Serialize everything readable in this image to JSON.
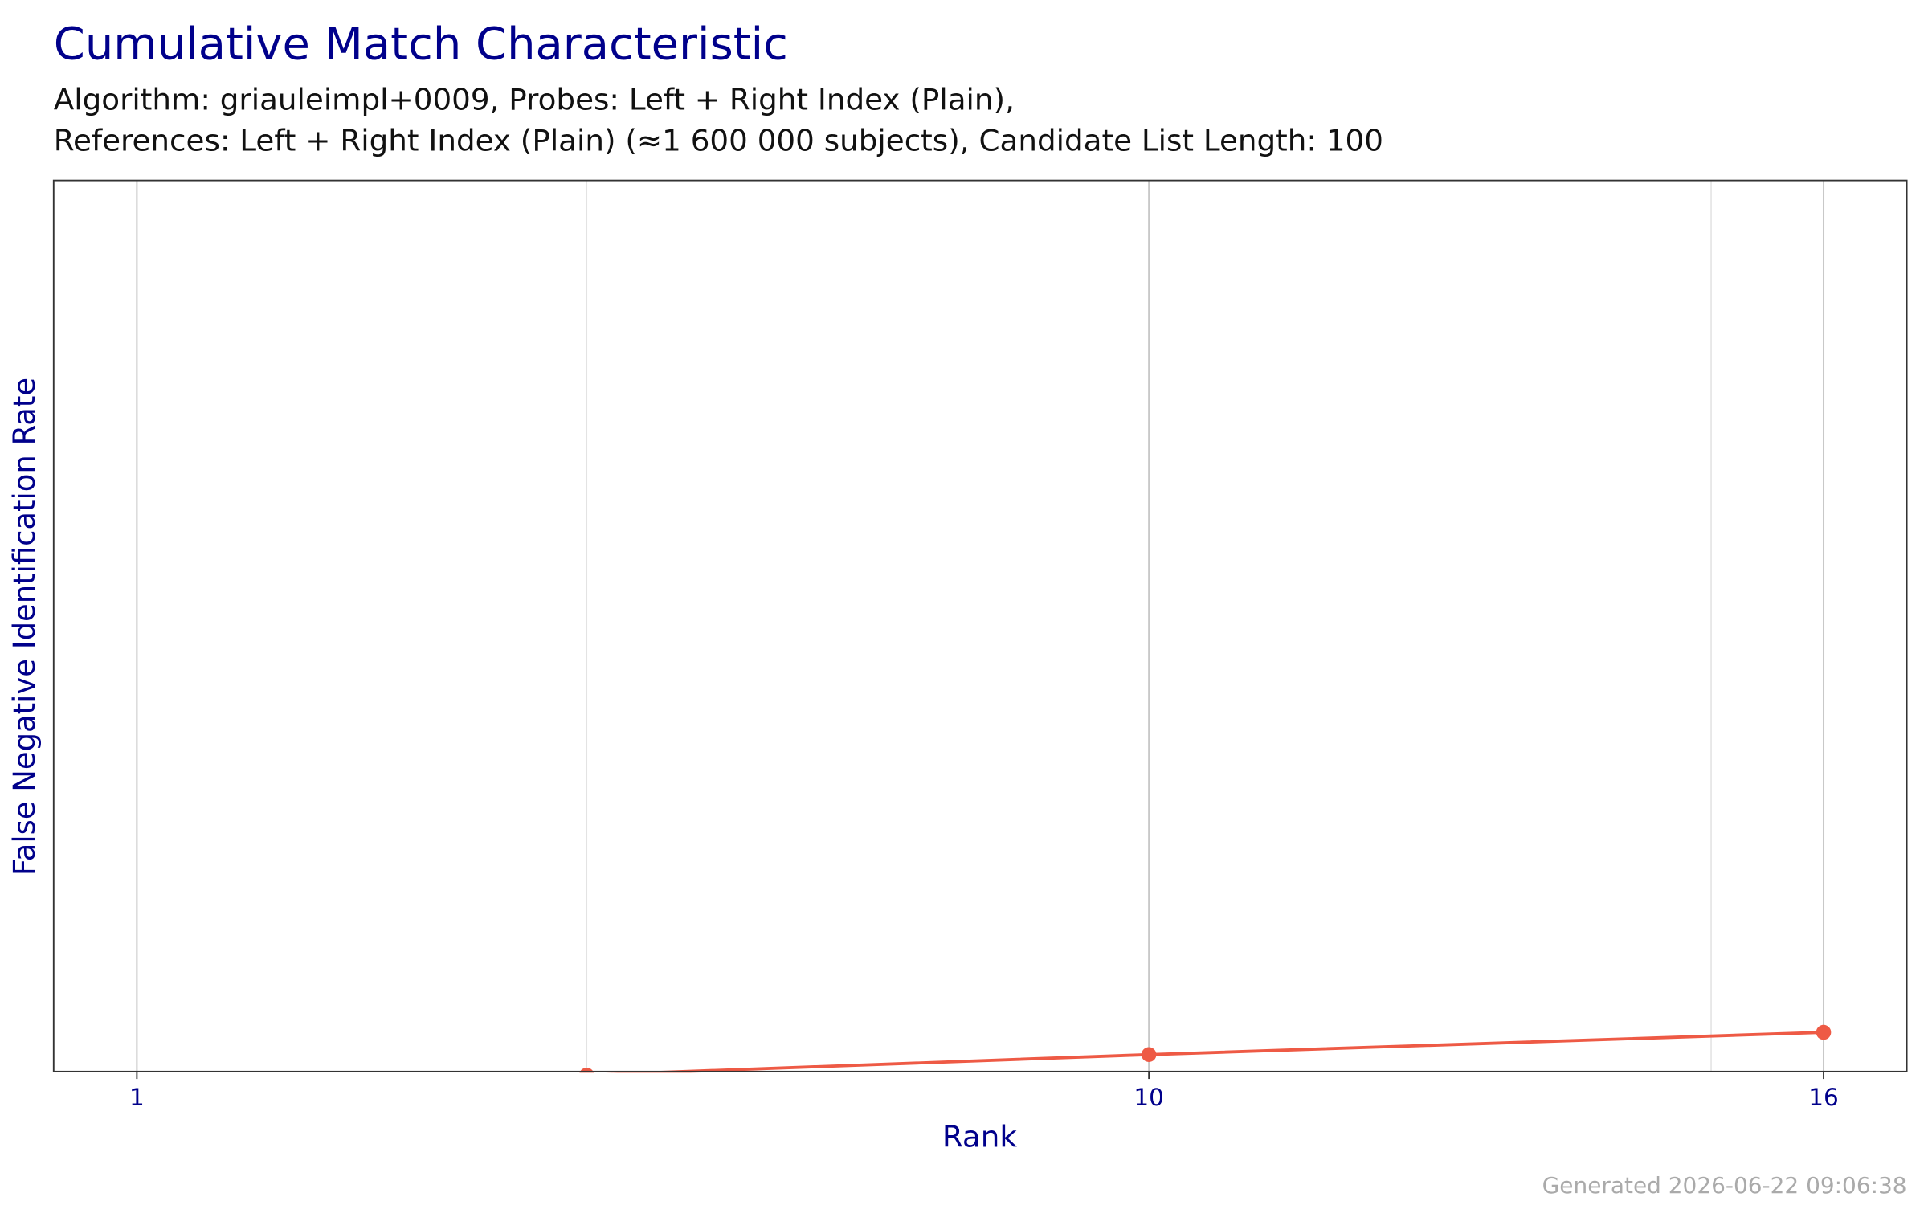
{
  "chart_data": {
    "type": "line",
    "title": "Cumulative Match Characteristic",
    "subtitle_lines": [
      "Algorithm: griauleimpl+0009, Probes: Left + Right Index (Plain),",
      "References: Left + Right Index (Plain) (≈1 600 000 subjects), Candidate List Length: 100"
    ],
    "x_label": "Rank",
    "y_label": "False Negative Identification Rate",
    "footer": "Generated 2026-06-22 09:06:38",
    "x": [
      5,
      10,
      16
    ],
    "values": [
      -0.004,
      0.019,
      0.044
    ],
    "color": "#ee5a45",
    "xlim": [
      0.26,
      16.74
    ],
    "xticks": [
      1,
      10,
      16
    ],
    "x_minor_ticks": [
      5,
      15
    ],
    "ylim": [
      0,
      1
    ],
    "grid": true
  }
}
